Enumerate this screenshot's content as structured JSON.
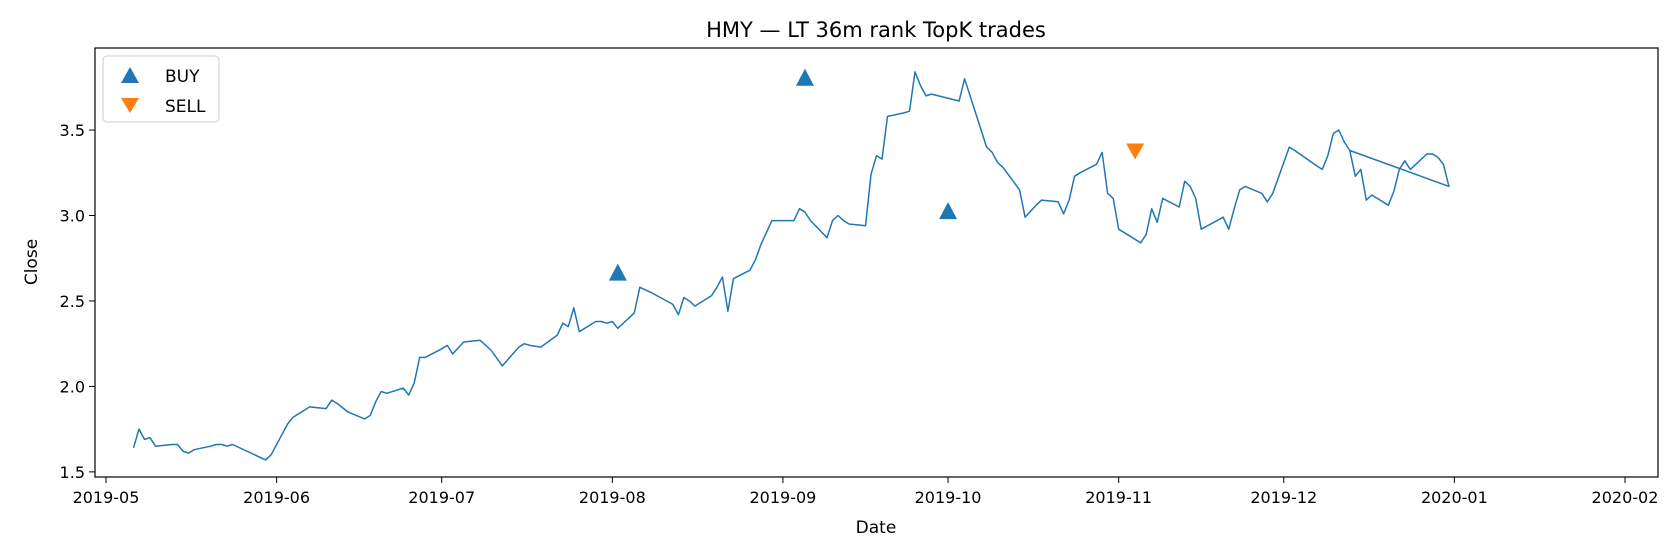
{
  "chart_data": {
    "type": "line",
    "title": "HMY — LT 36m rank TopK trades",
    "xlabel": "Date",
    "ylabel": "Close",
    "xlim": [
      "2019-04-29",
      "2020-02-07"
    ],
    "ylim": [
      1.47,
      3.98
    ],
    "x_ticks": [
      "2019-05-01",
      "2019-06-01",
      "2019-07-01",
      "2019-08-01",
      "2019-09-01",
      "2019-10-01",
      "2019-11-01",
      "2019-12-01",
      "2020-01-01",
      "2020-02-01"
    ],
    "x_tick_labels": [
      "2019-05",
      "2019-06",
      "2019-07",
      "2019-08",
      "2019-09",
      "2019-10",
      "2019-11",
      "2019-12",
      "2020-01",
      "2020-02"
    ],
    "y_ticks": [
      1.5,
      2.0,
      2.5,
      3.0,
      3.5
    ],
    "y_tick_labels": [
      "1.5",
      "2.0",
      "2.5",
      "3.0",
      "3.5"
    ],
    "grid": false,
    "legend_position": "top-left",
    "colors": {
      "line": "#1f77b4",
      "buy": "#1f77b4",
      "sell": "#ff7f0e"
    },
    "series": [
      {
        "name": "Close",
        "points": [
          [
            "2019-05-06",
            1.64
          ],
          [
            "2019-05-07",
            1.75
          ],
          [
            "2019-05-08",
            1.69
          ],
          [
            "2019-05-09",
            1.7
          ],
          [
            "2019-05-10",
            1.65
          ],
          [
            "2019-05-13",
            1.66
          ],
          [
            "2019-05-14",
            1.66
          ],
          [
            "2019-05-15",
            1.62
          ],
          [
            "2019-05-16",
            1.61
          ],
          [
            "2019-05-17",
            1.63
          ],
          [
            "2019-05-20",
            1.65
          ],
          [
            "2019-05-21",
            1.66
          ],
          [
            "2019-05-22",
            1.66
          ],
          [
            "2019-05-23",
            1.65
          ],
          [
            "2019-05-24",
            1.66
          ],
          [
            "2019-05-30",
            1.57
          ],
          [
            "2019-05-31",
            1.6
          ],
          [
            "2019-06-03",
            1.78
          ],
          [
            "2019-06-04",
            1.82
          ],
          [
            "2019-06-07",
            1.88
          ],
          [
            "2019-06-10",
            1.87
          ],
          [
            "2019-06-11",
            1.92
          ],
          [
            "2019-06-12",
            1.9
          ],
          [
            "2019-06-14",
            1.85
          ],
          [
            "2019-06-17",
            1.81
          ],
          [
            "2019-06-18",
            1.83
          ],
          [
            "2019-06-19",
            1.91
          ],
          [
            "2019-06-20",
            1.97
          ],
          [
            "2019-06-21",
            1.96
          ],
          [
            "2019-06-24",
            1.99
          ],
          [
            "2019-06-25",
            1.95
          ],
          [
            "2019-06-26",
            2.02
          ],
          [
            "2019-06-27",
            2.17
          ],
          [
            "2019-06-28",
            2.17
          ],
          [
            "2019-07-01",
            2.22
          ],
          [
            "2019-07-02",
            2.24
          ],
          [
            "2019-07-03",
            2.19
          ],
          [
            "2019-07-05",
            2.26
          ],
          [
            "2019-07-08",
            2.27
          ],
          [
            "2019-07-10",
            2.21
          ],
          [
            "2019-07-12",
            2.12
          ],
          [
            "2019-07-15",
            2.23
          ],
          [
            "2019-07-16",
            2.25
          ],
          [
            "2019-07-17",
            2.24
          ],
          [
            "2019-07-19",
            2.23
          ],
          [
            "2019-07-22",
            2.3
          ],
          [
            "2019-07-23",
            2.37
          ],
          [
            "2019-07-24",
            2.35
          ],
          [
            "2019-07-25",
            2.46
          ],
          [
            "2019-07-26",
            2.32
          ],
          [
            "2019-07-29",
            2.38
          ],
          [
            "2019-07-30",
            2.38
          ],
          [
            "2019-07-31",
            2.37
          ],
          [
            "2019-08-01",
            2.38
          ],
          [
            "2019-08-02",
            2.34
          ],
          [
            "2019-08-05",
            2.43
          ],
          [
            "2019-08-06",
            2.58
          ],
          [
            "2019-08-08",
            2.55
          ],
          [
            "2019-08-12",
            2.48
          ],
          [
            "2019-08-13",
            2.42
          ],
          [
            "2019-08-14",
            2.52
          ],
          [
            "2019-08-15",
            2.5
          ],
          [
            "2019-08-16",
            2.47
          ],
          [
            "2019-08-19",
            2.53
          ],
          [
            "2019-08-20",
            2.58
          ],
          [
            "2019-08-21",
            2.64
          ],
          [
            "2019-08-22",
            2.44
          ],
          [
            "2019-08-23",
            2.63
          ],
          [
            "2019-08-26",
            2.68
          ],
          [
            "2019-08-27",
            2.74
          ],
          [
            "2019-08-28",
            2.83
          ],
          [
            "2019-08-29",
            2.9
          ],
          [
            "2019-08-30",
            2.97
          ],
          [
            "2019-09-03",
            2.97
          ],
          [
            "2019-09-04",
            3.04
          ],
          [
            "2019-09-05",
            3.02
          ],
          [
            "2019-09-06",
            2.97
          ],
          [
            "2019-09-09",
            2.87
          ],
          [
            "2019-09-10",
            2.97
          ],
          [
            "2019-09-11",
            3.0
          ],
          [
            "2019-09-12",
            2.97
          ],
          [
            "2019-09-13",
            2.95
          ],
          [
            "2019-09-16",
            2.94
          ],
          [
            "2019-09-17",
            3.24
          ],
          [
            "2019-09-18",
            3.35
          ],
          [
            "2019-09-19",
            3.33
          ],
          [
            "2019-09-20",
            3.58
          ],
          [
            "2019-09-23",
            3.6
          ],
          [
            "2019-09-24",
            3.61
          ],
          [
            "2019-09-25",
            3.84
          ],
          [
            "2019-09-26",
            3.76
          ],
          [
            "2019-09-27",
            3.7
          ],
          [
            "2019-09-28",
            3.71
          ],
          [
            "2019-10-03",
            3.67
          ],
          [
            "2019-10-04",
            3.8
          ],
          [
            "2019-10-07",
            3.5
          ],
          [
            "2019-10-08",
            3.4
          ],
          [
            "2019-10-09",
            3.37
          ],
          [
            "2019-10-10",
            3.31
          ],
          [
            "2019-10-11",
            3.28
          ],
          [
            "2019-10-14",
            3.15
          ],
          [
            "2019-10-15",
            2.99
          ],
          [
            "2019-10-17",
            3.06
          ],
          [
            "2019-10-18",
            3.09
          ],
          [
            "2019-10-21",
            3.08
          ],
          [
            "2019-10-22",
            3.01
          ],
          [
            "2019-10-23",
            3.09
          ],
          [
            "2019-10-24",
            3.23
          ],
          [
            "2019-10-25",
            3.25
          ],
          [
            "2019-10-28",
            3.3
          ],
          [
            "2019-10-29",
            3.37
          ],
          [
            "2019-10-30",
            3.13
          ],
          [
            "2019-10-31",
            3.1
          ],
          [
            "2019-11-01",
            2.92
          ],
          [
            "2019-11-05",
            2.84
          ],
          [
            "2019-11-06",
            2.89
          ],
          [
            "2019-11-07",
            3.04
          ],
          [
            "2019-11-08",
            2.96
          ],
          [
            "2019-11-09",
            3.1
          ],
          [
            "2019-11-12",
            3.05
          ],
          [
            "2019-11-13",
            3.2
          ],
          [
            "2019-11-14",
            3.17
          ],
          [
            "2019-11-15",
            3.1
          ],
          [
            "2019-11-16",
            2.92
          ],
          [
            "2019-11-20",
            2.99
          ],
          [
            "2019-11-21",
            2.92
          ],
          [
            "2019-11-22",
            3.04
          ],
          [
            "2019-11-23",
            3.15
          ],
          [
            "2019-11-24",
            3.17
          ],
          [
            "2019-11-27",
            3.13
          ],
          [
            "2019-11-28",
            3.08
          ],
          [
            "2019-11-29",
            3.13
          ],
          [
            "2019-12-02",
            3.4
          ],
          [
            "2019-12-03",
            3.38
          ],
          [
            "2019-12-07",
            3.29
          ],
          [
            "2019-12-08",
            3.27
          ],
          [
            "2019-12-09",
            3.35
          ],
          [
            "2019-12-10",
            3.48
          ],
          [
            "2019-12-11",
            3.5
          ],
          [
            "2019-12-12",
            3.43
          ],
          [
            "2019-12-13",
            3.38
          ],
          [
            "2019-12-14",
            3.23
          ],
          [
            "2019-12-15",
            3.27
          ],
          [
            "2019-12-16",
            3.09
          ],
          [
            "2019-12-17",
            3.12
          ],
          [
            "2019-12-20",
            3.06
          ],
          [
            "2019-12-21",
            3.14
          ],
          [
            "2019-12-22",
            3.27
          ],
          [
            "2019-12-23",
            3.32
          ],
          [
            "2019-12-24",
            3.27
          ],
          [
            "2019-12-27",
            3.36
          ],
          [
            "2019-12-28",
            3.36
          ],
          [
            "2019-12-29",
            3.34
          ],
          [
            "2019-12-30",
            3.3
          ],
          [
            "2019-12-31",
            3.17
          ],
          [
            "2019-12-13",
            3.38
          ],
          [
            "2019-12-14",
            3.23
          ]
        ]
      }
    ],
    "buy_label": "BUY",
    "sell_label": "SELL",
    "buys": [
      [
        "2019-08-02",
        2.66
      ],
      [
        "2019-09-05",
        3.8
      ],
      [
        "2019-10-01",
        3.02
      ]
    ],
    "sells": [
      [
        "2019-11-04",
        3.38
      ]
    ]
  }
}
